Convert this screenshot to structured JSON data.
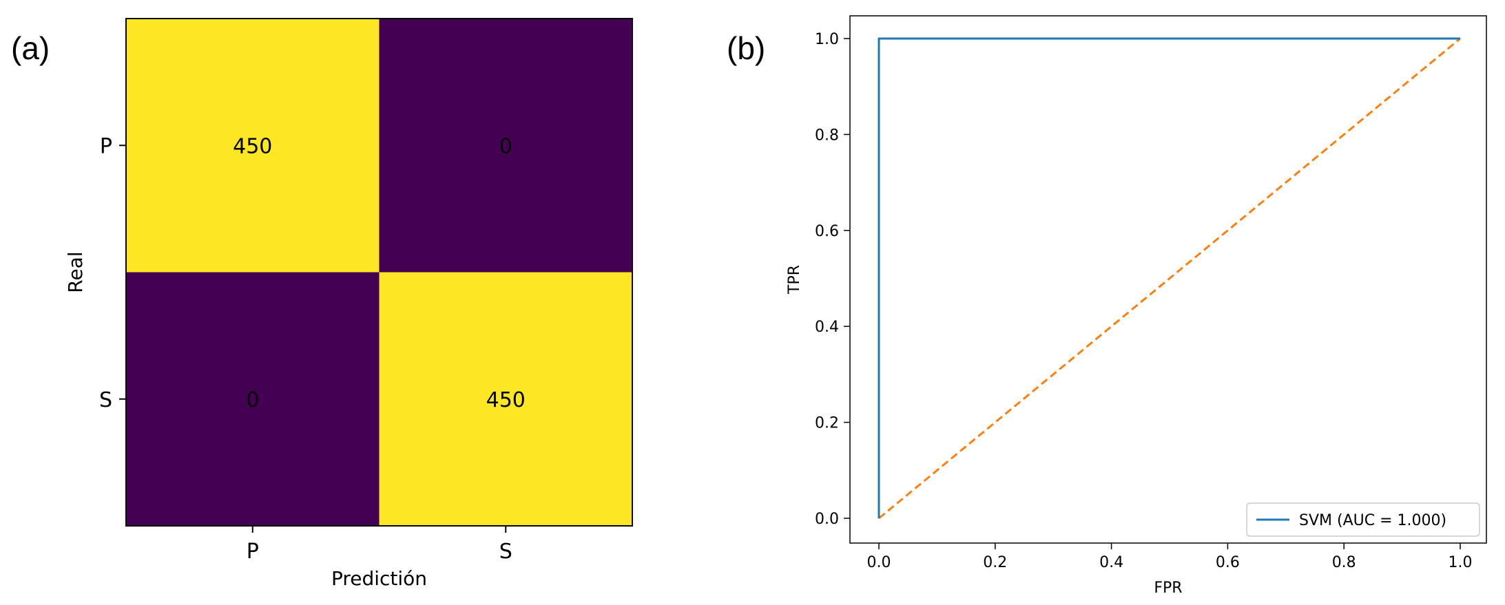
{
  "panels": {
    "a_label": "(a)",
    "b_label": "(b)"
  },
  "chart_data": [
    {
      "type": "heatmap",
      "panel": "(a)",
      "title": "",
      "xlabel": "Predictión",
      "ylabel": "Real",
      "x_categories": [
        "P",
        "S"
      ],
      "y_categories": [
        "P",
        "S"
      ],
      "values": [
        [
          450,
          0
        ],
        [
          0,
          450
        ]
      ],
      "colormap": "viridis",
      "colors": {
        "high": "#fde725",
        "low": "#440154"
      },
      "text_colors": {
        "on_high": "#000000",
        "on_low": "#000000"
      },
      "grid": false
    },
    {
      "type": "line",
      "panel": "(b)",
      "title": "",
      "xlabel": "FPR",
      "ylabel": "TPR",
      "xlim": [
        0.0,
        1.0
      ],
      "ylim": [
        0.0,
        1.0
      ],
      "xticks": [
        "0.0",
        "0.2",
        "0.4",
        "0.6",
        "0.8",
        "1.0"
      ],
      "yticks": [
        "0.0",
        "0.2",
        "0.4",
        "0.6",
        "0.8",
        "1.0"
      ],
      "grid": false,
      "legend_position": "lower-right",
      "series": [
        {
          "name": "SVM (AUC = 1.000)",
          "color": "#1f77b4",
          "style": "solid",
          "x": [
            0.0,
            0.0,
            1.0
          ],
          "y": [
            0.0,
            1.0,
            1.0
          ]
        },
        {
          "color": "#ff7f0e",
          "style": "dashed",
          "x": [
            0.0,
            1.0
          ],
          "y": [
            0.0,
            1.0
          ]
        }
      ]
    }
  ]
}
